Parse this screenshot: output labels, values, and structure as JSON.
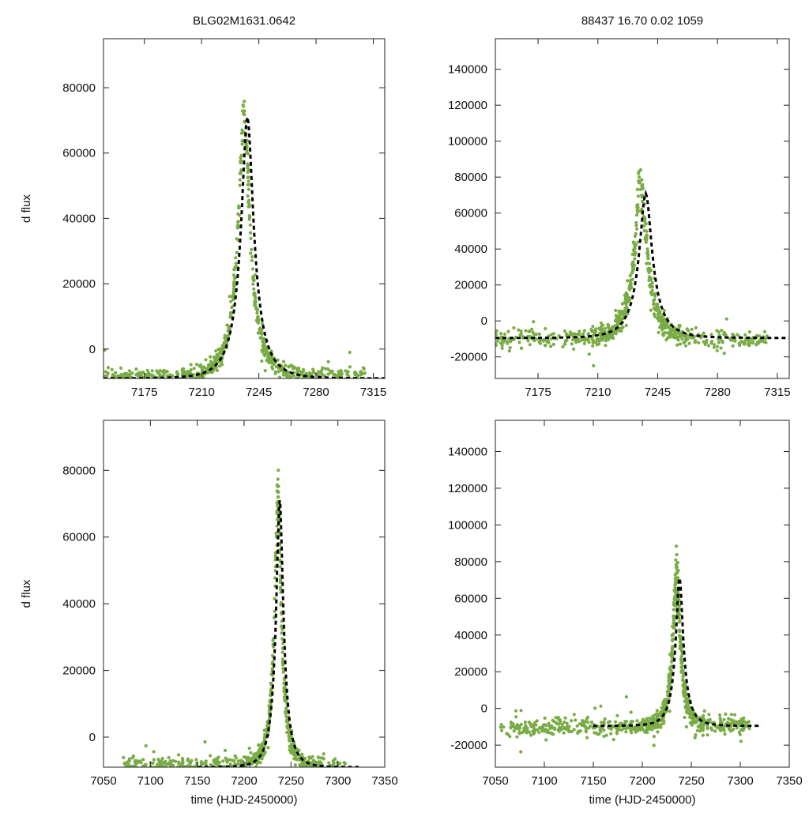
{
  "figure": {
    "title_left": "BLG02M1631.0642",
    "title_right": "88437  16.70  0.02  1059",
    "ylabel": "d flux",
    "xlabel": "time (HJD-2450000)"
  },
  "colors": {
    "points": "#79ac45",
    "fit": "#000000",
    "axes": "#222222"
  },
  "chart_data": [
    {
      "type": "scatter",
      "panel": "top-left",
      "title": "BLG02M1631.0642",
      "xlim": [
        7150,
        7322
      ],
      "ylim": [
        -9000,
        95000
      ],
      "xticks": [
        7175,
        7210,
        7245,
        7280,
        7315
      ],
      "yticks": [
        0,
        20000,
        40000,
        60000,
        80000
      ],
      "ylabel": "d flux",
      "xlabel": "",
      "series": [
        {
          "name": "data",
          "kind": "points",
          "baseline": -8500,
          "start": 7150,
          "end": 7310,
          "peak_time": 7236,
          "peak": 80000,
          "tE": 13,
          "scatter": 2500,
          "n": 700
        },
        {
          "name": "model",
          "kind": "pspl-fit",
          "baseline": -9000,
          "t0": 7238,
          "amplitude": 80000,
          "tE": 14,
          "start": 7150,
          "end": 7322
        }
      ]
    },
    {
      "type": "scatter",
      "panel": "top-right",
      "title": "88437  16.70  0.02  1059",
      "xlim": [
        7150,
        7322
      ],
      "ylim": [
        -32000,
        157000
      ],
      "xticks": [
        7175,
        7210,
        7245,
        7280,
        7315
      ],
      "yticks": [
        -20000,
        0,
        20000,
        40000,
        60000,
        80000,
        100000,
        120000,
        140000
      ],
      "ylabel": "",
      "xlabel": "",
      "series": [
        {
          "name": "data",
          "kind": "points",
          "baseline": -10000,
          "start": 7150,
          "end": 7310,
          "peak_time": 7235,
          "peak": 85000,
          "tE": 13,
          "scatter": 5000,
          "n": 700
        },
        {
          "name": "model",
          "kind": "pspl-fit",
          "baseline": -9500,
          "t0": 7238,
          "amplitude": 80500,
          "tE": 14,
          "start": 7150,
          "end": 7322
        }
      ]
    },
    {
      "type": "scatter",
      "panel": "bottom-left",
      "title": "",
      "xlim": [
        7050,
        7350
      ],
      "ylim": [
        -9000,
        95000
      ],
      "xticks": [
        7050,
        7100,
        7150,
        7200,
        7250,
        7300,
        7350
      ],
      "yticks": [
        0,
        20000,
        40000,
        60000,
        80000
      ],
      "ylabel": "d flux",
      "xlabel": "time (HJD-2450000)",
      "series": [
        {
          "name": "data",
          "kind": "points",
          "baseline": -8500,
          "start": 7070,
          "end": 7310,
          "peak_time": 7236,
          "peak": 80000,
          "tE": 13,
          "scatter": 2500,
          "n": 700
        },
        {
          "name": "model",
          "kind": "pspl-fit",
          "baseline": -9000,
          "t0": 7238,
          "amplitude": 80000,
          "tE": 14,
          "start": 7150,
          "end": 7322
        }
      ]
    },
    {
      "type": "scatter",
      "panel": "bottom-right",
      "title": "",
      "xlim": [
        7050,
        7350
      ],
      "ylim": [
        -32000,
        157000
      ],
      "xticks": [
        7050,
        7100,
        7150,
        7200,
        7250,
        7300,
        7350
      ],
      "yticks": [
        -20000,
        0,
        20000,
        40000,
        60000,
        80000,
        100000,
        120000,
        140000
      ],
      "ylabel": "",
      "xlabel": "time (HJD-2450000)",
      "series": [
        {
          "name": "data",
          "kind": "points",
          "baseline": -10000,
          "start": 7055,
          "end": 7310,
          "peak_time": 7235,
          "peak": 85000,
          "tE": 13,
          "scatter": 5000,
          "n": 800
        },
        {
          "name": "model",
          "kind": "pspl-fit",
          "baseline": -9500,
          "t0": 7238,
          "amplitude": 80500,
          "tE": 14,
          "start": 7150,
          "end": 7322
        }
      ]
    }
  ]
}
